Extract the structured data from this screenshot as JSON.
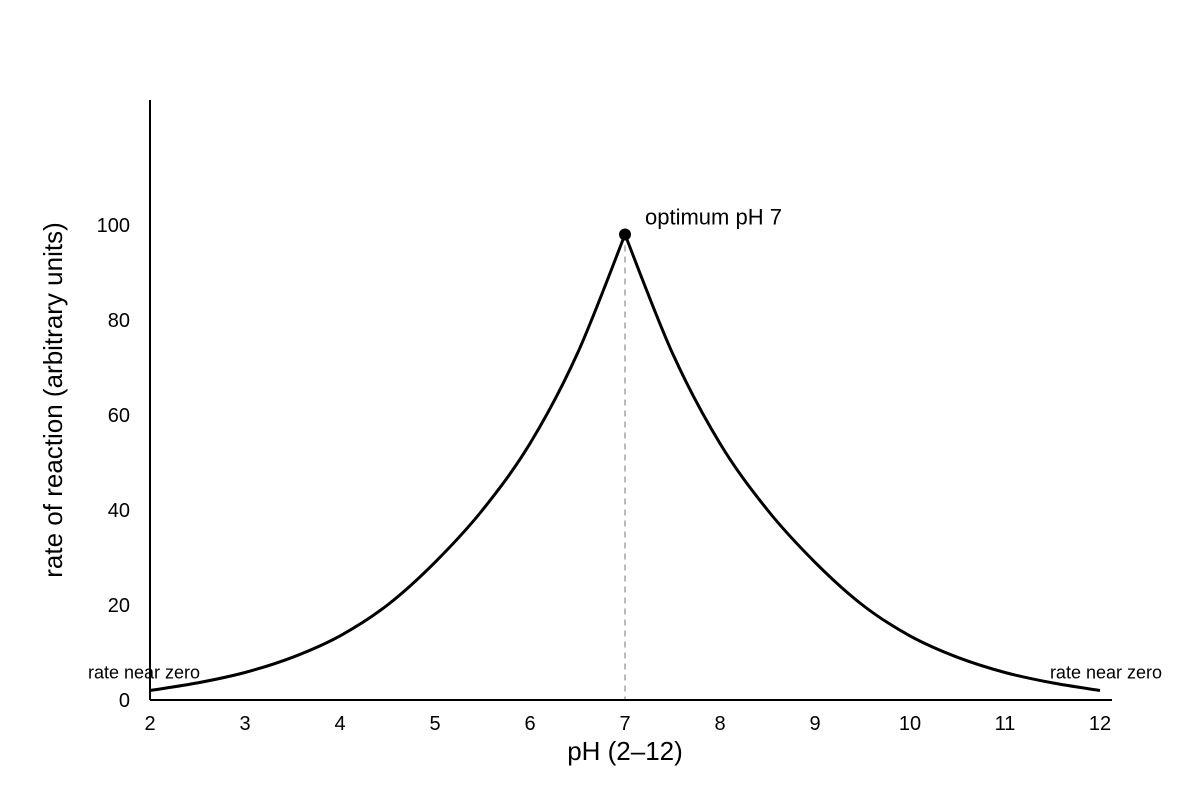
{
  "chart_data": {
    "type": "line",
    "xlabel": "pH (2–12)",
    "ylabel": "rate of reaction (arbitrary units)",
    "xlim": [
      2,
      12
    ],
    "ylim": [
      0,
      125
    ],
    "x_ticks": [
      2,
      3,
      4,
      5,
      6,
      7,
      8,
      9,
      10,
      11,
      12
    ],
    "y_ticks": [
      0,
      20,
      40,
      60,
      80,
      100
    ],
    "grid": false,
    "series": [
      {
        "x": [
          2,
          2.5,
          3,
          3.5,
          4,
          4.5,
          5,
          5.5,
          6,
          6.5,
          7,
          7.5,
          8,
          8.5,
          9,
          9.5,
          10,
          10.5,
          11,
          11.5,
          12
        ],
        "y": [
          2,
          3.6,
          5.8,
          9,
          13.5,
          20,
          29,
          40,
          54,
          73,
          98,
          73,
          54,
          40,
          29,
          20,
          13.5,
          9,
          5.8,
          3.6,
          2
        ]
      }
    ],
    "peak": {
      "x": 7,
      "y": 98,
      "label": "optimum pH 7"
    },
    "annotations": [
      {
        "text": "rate near zero",
        "x": 2,
        "y": 2,
        "side": "left"
      },
      {
        "text": "rate near zero",
        "x": 12,
        "y": 2,
        "side": "right"
      }
    ],
    "colors": {
      "line": "#000000",
      "peak_guide": "#bbbbbb",
      "axis": "#000000"
    }
  }
}
